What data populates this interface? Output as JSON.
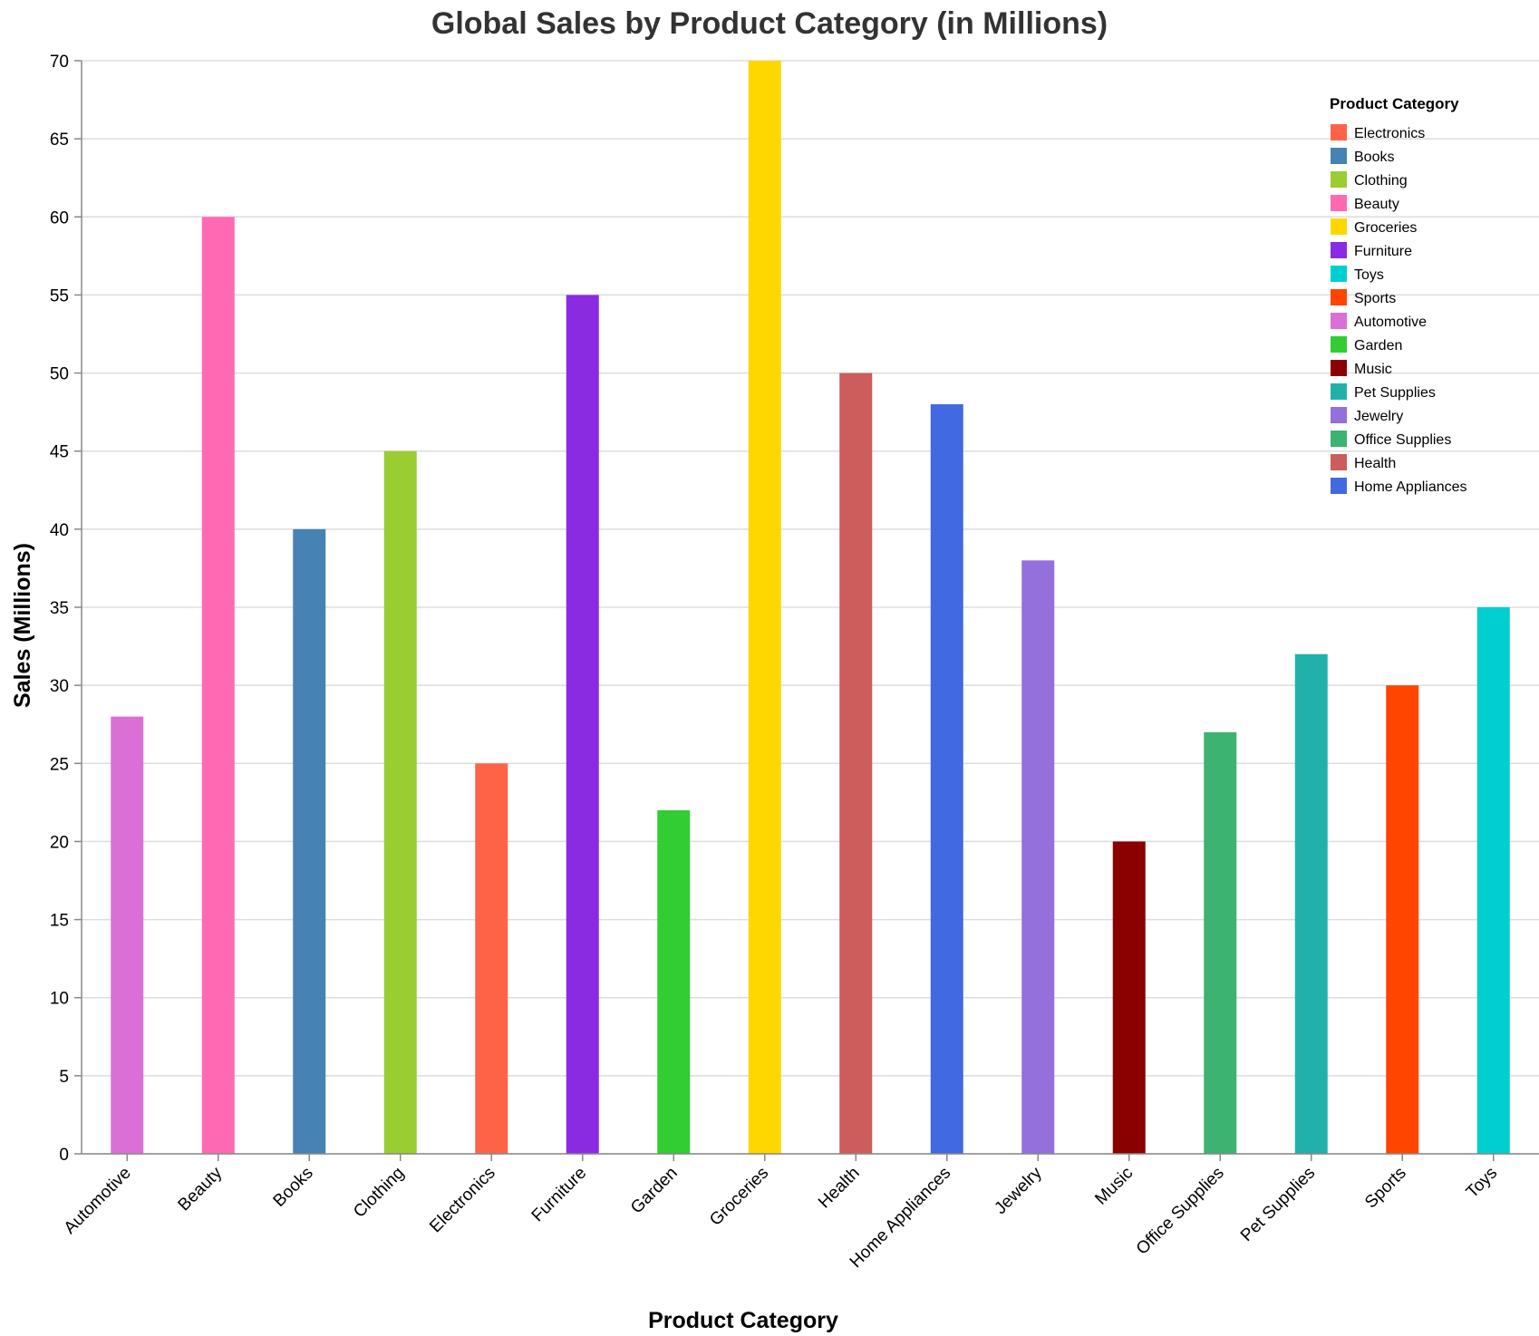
{
  "chart_data": {
    "type": "bar",
    "title": "Global Sales by Product Category (in Millions)",
    "xlabel": "Product Category",
    "ylabel": "Sales (Millions)",
    "ylim": [
      0,
      70
    ],
    "y_ticks": [
      "0",
      "5",
      "10",
      "15",
      "20",
      "25",
      "30",
      "35",
      "40",
      "45",
      "50",
      "55",
      "60",
      "65",
      "70"
    ],
    "grid": true,
    "categories": [
      "Automotive",
      "Beauty",
      "Books",
      "Clothing",
      "Electronics",
      "Furniture",
      "Garden",
      "Groceries",
      "Health",
      "Home Appliances",
      "Jewelry",
      "Music",
      "Office Supplies",
      "Pet Supplies",
      "Sports",
      "Toys"
    ],
    "values": [
      28,
      60,
      40,
      45,
      25,
      55,
      22,
      70,
      50,
      48,
      38,
      20,
      27,
      32,
      30,
      35
    ],
    "colors": {
      "Electronics": "#FF6347",
      "Books": "#4682B4",
      "Clothing": "#9ACD32",
      "Beauty": "#FF69B4",
      "Groceries": "#FFD700",
      "Furniture": "#8A2BE2",
      "Toys": "#00CED1",
      "Sports": "#FF4500",
      "Automotive": "#DA70D6",
      "Garden": "#32CD32",
      "Music": "#8B0000",
      "Pet Supplies": "#20B2AA",
      "Jewelry": "#9370DB",
      "Office Supplies": "#3CB371",
      "Health": "#CD5C5C",
      "Home Appliances": "#4169E1"
    },
    "legend": {
      "title": "Product Category",
      "placement": "top-right",
      "entries": [
        "Electronics",
        "Books",
        "Clothing",
        "Beauty",
        "Groceries",
        "Furniture",
        "Toys",
        "Sports",
        "Automotive",
        "Garden",
        "Music",
        "Pet Supplies",
        "Jewelry",
        "Office Supplies",
        "Health",
        "Home Appliances"
      ]
    }
  }
}
